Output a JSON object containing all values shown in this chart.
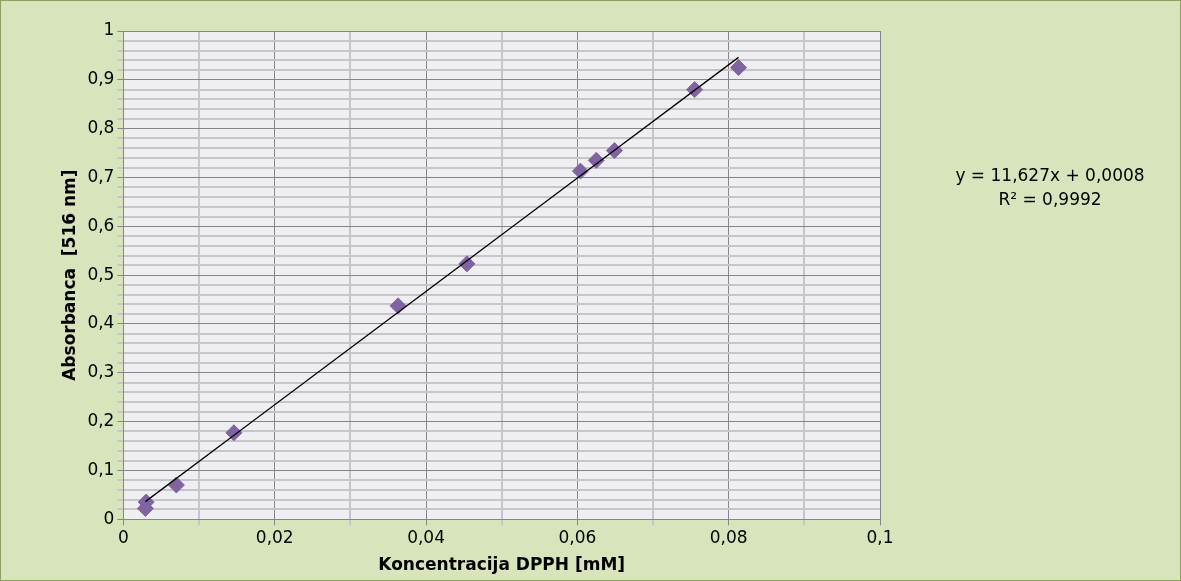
{
  "chart_data": {
    "type": "scatter",
    "xlabel": "Koncentracija DPPH [mM]",
    "ylabel": "Absorbanca  [516 nm]",
    "xlim": [
      0,
      0.1
    ],
    "xticks": [
      0,
      {
        "value": 0.01,
        "label": null
      },
      {
        "value": 0.02,
        "label": "0,02"
      },
      {
        "value": 0.03,
        "label": null
      },
      {
        "value": 0.04,
        "label": "0,04"
      },
      {
        "value": 0.05,
        "label": null
      },
      {
        "value": 0.06,
        "label": "0,06"
      },
      {
        "value": 0.07,
        "label": null
      },
      {
        "value": 0.08,
        "label": "0,08"
      },
      {
        "value": 0.09,
        "label": null
      },
      {
        "value": 0.1,
        "label": "0,1"
      }
    ],
    "ylim": [
      0,
      1
    ],
    "yticks": [
      0,
      {
        "value": 0.02,
        "label": null
      },
      {
        "value": 0.04,
        "label": null
      },
      {
        "value": 0.06,
        "label": null
      },
      {
        "value": 0.08,
        "label": null
      },
      {
        "value": 0.1,
        "label": "0,1"
      },
      {
        "value": 0.12,
        "label": null
      },
      {
        "value": 0.14,
        "label": null
      },
      {
        "value": 0.16,
        "label": null
      },
      {
        "value": 0.18,
        "label": null
      },
      {
        "value": 0.2,
        "label": "0,2"
      },
      {
        "value": 0.22,
        "label": null
      },
      {
        "value": 0.24,
        "label": null
      },
      {
        "value": 0.26,
        "label": null
      },
      {
        "value": 0.28,
        "label": null
      },
      {
        "value": 0.3,
        "label": "0,3"
      },
      {
        "value": 0.32,
        "label": null
      },
      {
        "value": 0.34,
        "label": null
      },
      {
        "value": 0.36,
        "label": null
      },
      {
        "value": 0.38,
        "label": null
      },
      {
        "value": 0.4,
        "label": "0,4"
      },
      {
        "value": 0.42,
        "label": null
      },
      {
        "value": 0.44,
        "label": null
      },
      {
        "value": 0.46,
        "label": null
      },
      {
        "value": 0.48,
        "label": null
      },
      {
        "value": 0.5,
        "label": "0,5"
      },
      {
        "value": 0.52,
        "label": null
      },
      {
        "value": 0.54,
        "label": null
      },
      {
        "value": 0.56,
        "label": null
      },
      {
        "value": 0.58,
        "label": null
      },
      {
        "value": 0.6,
        "label": "0,6"
      },
      {
        "value": 0.62,
        "label": null
      },
      {
        "value": 0.64,
        "label": null
      },
      {
        "value": 0.66,
        "label": null
      },
      {
        "value": 0.68,
        "label": null
      },
      {
        "value": 0.7,
        "label": "0,7"
      },
      {
        "value": 0.72,
        "label": null
      },
      {
        "value": 0.74,
        "label": null
      },
      {
        "value": 0.76,
        "label": null
      },
      {
        "value": 0.78,
        "label": null
      },
      {
        "value": 0.8,
        "label": "0,8"
      },
      {
        "value": 0.82,
        "label": null
      },
      {
        "value": 0.84,
        "label": null
      },
      {
        "value": 0.86,
        "label": null
      },
      {
        "value": 0.88,
        "label": null
      },
      {
        "value": 0.9,
        "label": "0,9"
      },
      {
        "value": 0.92,
        "label": null
      },
      {
        "value": 0.94,
        "label": null
      },
      {
        "value": 0.96,
        "label": null
      },
      {
        "value": 0.98,
        "label": null
      },
      1
    ],
    "grid": true,
    "legend": false,
    "marker": "diamond",
    "series": [
      {
        "color": "#8064a2",
        "x": [
          0.0029,
          0.003,
          0.007,
          0.0146,
          0.0363,
          0.0454,
          0.0604,
          0.0625,
          0.0649,
          0.0755,
          0.0813
        ],
        "values": [
          0.022,
          0.035,
          0.07,
          0.177,
          0.437,
          0.523,
          0.713,
          0.735,
          0.755,
          0.88,
          0.925
        ]
      },
      {
        "type": "line",
        "color": "#000000",
        "marker": "none",
        "x": [
          0.0029,
          0.0813
        ],
        "values": [
          0.036,
          0.946
        ]
      }
    ],
    "annotations": [
      "y = 11,627x + 0,0008",
      "R² = 0,9992"
    ]
  }
}
